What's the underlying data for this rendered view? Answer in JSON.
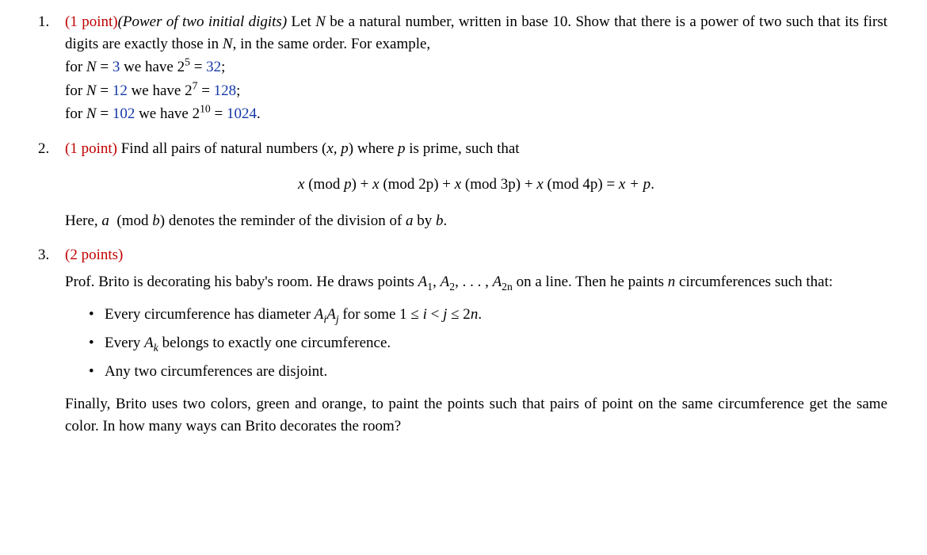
{
  "p1": {
    "num": "1.",
    "points": "(1 point)",
    "title": "(Power of two initial digits)",
    "text1a": " Let ",
    "N": "N",
    "text1b": " be a natural number, written in base 10. Show that",
    "text2": "there is a power of two such that its first digits are exactly those in ",
    "text2b": ", in the same order. For",
    "text3": "example,",
    "ex1a": "for ",
    "ex1b": " = ",
    "ex1c": "3",
    "ex1d": " we have 2",
    "ex1e": "5",
    "ex1f": " = ",
    "ex1g": "32",
    "ex1h": ";",
    "ex2a": "for ",
    "ex2b": " = ",
    "ex2c": "12",
    "ex2d": " we have 2",
    "ex2e": "7",
    "ex2f": " = ",
    "ex2g": "128",
    "ex2h": ";",
    "ex3a": "for ",
    "ex3b": " = ",
    "ex3c": "102",
    "ex3d": " we have 2",
    "ex3e": "10",
    "ex3f": " = ",
    "ex3g": "1024",
    "ex3h": "."
  },
  "p2": {
    "num": "2.",
    "points": "(1 point)",
    "text1": " Find all pairs of natural numbers (",
    "xp": "x, p",
    "text1b": ") where ",
    "p": "p",
    "text1c": " is prime, such that",
    "eq_x": "x",
    "eq_mod": " (mod ",
    "eq_p": "p",
    "eq_cl": ") + ",
    "eq_2p": "2p",
    "eq_3p": "3p",
    "eq_4p": "4p",
    "eq_eq": ") = ",
    "eq_xp": "x + p",
    "eq_dot": ".",
    "here1": "Here, ",
    "a": "a",
    "here2": " (mod ",
    "b": "b",
    "here3": ") denotes the reminder of the division of ",
    "here4": " by ",
    "here5": "."
  },
  "p3": {
    "num": "3.",
    "points": "(2 points)",
    "para1a": "Prof. Brito is decorating his baby's room. He draws points ",
    "A": "A",
    "s1": "1",
    "s2": "2",
    "s2n": "2n",
    "comma": ", ",
    "dots": ", . . . , ",
    "para1b": " on a line. Then he",
    "para1c": "paints ",
    "n": "n",
    "para1d": " circumferences such that:",
    "b1a": "Every circumference has diameter ",
    "Ai": "A",
    "si": "i",
    "Aj": "A",
    "sj": "j",
    "b1b": " for some 1 ≤ ",
    "ivar": "i",
    "b1c": " < ",
    "jvar": "j",
    "b1d": " ≤ 2",
    "b1e": ".",
    "b2a": "Every ",
    "Ak": "A",
    "sk": "k",
    "b2b": " belongs to exactly one circumference.",
    "b3": "Any two circumferences are disjoint.",
    "para2a": "Finally, Brito uses two colors, green and orange, to paint the points such that pairs of point on",
    "para2b": "the same circumference get the same color. In how many ways can Brito decorates the room?"
  }
}
